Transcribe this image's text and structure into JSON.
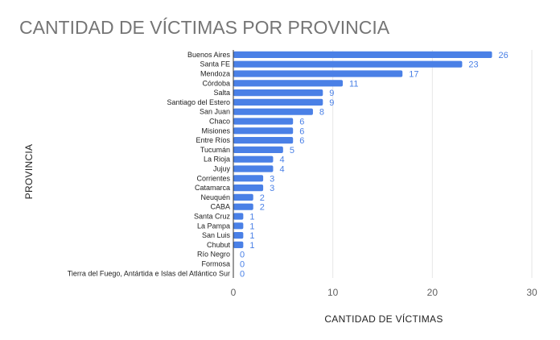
{
  "chart_data": {
    "type": "bar",
    "orientation": "horizontal",
    "title": "CANTIDAD DE VÍCTIMAS POR PROVINCIA",
    "xlabel": "CANTIDAD DE VÍCTIMAS",
    "ylabel": "PROVINCIA",
    "xlim": [
      0,
      30
    ],
    "xticks": [
      0,
      10,
      20,
      30
    ],
    "grid": true,
    "bar_color": "#4a80e6",
    "label_color": "#4a80e6",
    "categories": [
      "Buenos Aires",
      "Santa FE",
      "Mendoza",
      "Córdoba",
      "Salta",
      "Santiago del Estero",
      "San Juan",
      "Chaco",
      "Misiones",
      "Entre Ríos",
      "Tucumán",
      "La Rioja",
      "Jujuy",
      "Corrientes",
      "Catamarca",
      "Neuquén",
      "CABA",
      "Santa Cruz",
      "La Pampa",
      "San Luis",
      "Chubut",
      "Río Negro",
      "Formosa",
      "Tierra del Fuego, Antártida e Islas del Atlántico Sur"
    ],
    "values": [
      26,
      23,
      17,
      11,
      9,
      9,
      8,
      6,
      6,
      6,
      5,
      4,
      4,
      3,
      3,
      2,
      2,
      1,
      1,
      1,
      1,
      0,
      0,
      0
    ]
  }
}
